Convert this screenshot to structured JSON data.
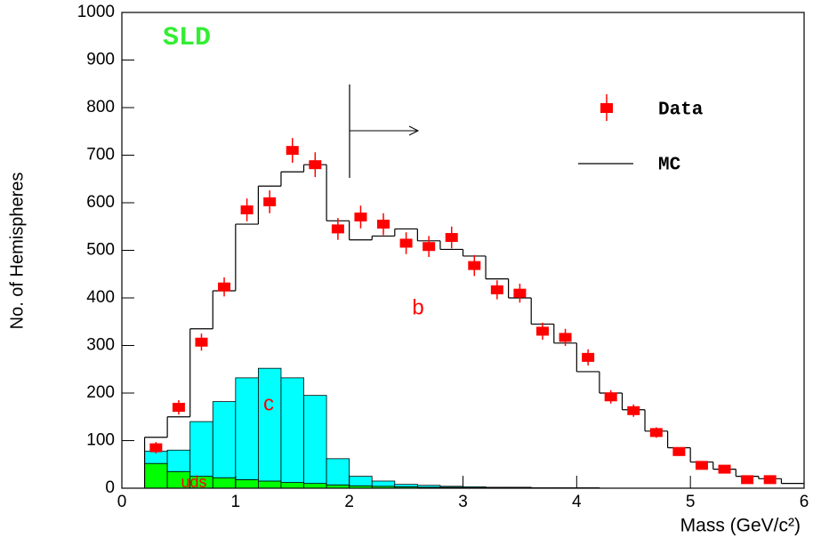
{
  "chart_data": {
    "type": "histogram",
    "label": "SLD",
    "xlabel": "Mass (GeV/c²)",
    "ylabel": "No. of Hemispheres",
    "region_label": "b",
    "xlim": [
      0,
      6
    ],
    "ylim": [
      0,
      1000
    ],
    "xticks": [
      0,
      1,
      2,
      3,
      4,
      5,
      6
    ],
    "yticks": [
      0,
      100,
      200,
      300,
      400,
      500,
      600,
      700,
      800,
      900,
      1000
    ],
    "bins": [
      0.2,
      0.4,
      0.6,
      0.8,
      1.0,
      1.2,
      1.4,
      1.6,
      1.8,
      2.0,
      2.2,
      2.4,
      2.6,
      2.8,
      3.0,
      3.2,
      3.4,
      3.6,
      3.8,
      4.0,
      4.2,
      4.4,
      4.6,
      4.8,
      5.0,
      5.2,
      5.4,
      5.6,
      5.8,
      6.0
    ],
    "series": [
      {
        "name": "uds",
        "color": "#00ff00",
        "stacked": true,
        "values": [
          52,
          35,
          25,
          22,
          18,
          15,
          12,
          10,
          7,
          5,
          4,
          3,
          2,
          2,
          1,
          1,
          1,
          1,
          0,
          0,
          0,
          0,
          0,
          0,
          0,
          0,
          0,
          0,
          0
        ]
      },
      {
        "name": "c",
        "color": "#00ffff",
        "stacked": true,
        "values": [
          26,
          45,
          115,
          160,
          214,
          237,
          220,
          185,
          55,
          20,
          11,
          5,
          4,
          2,
          2,
          1,
          1,
          0,
          1,
          1,
          0,
          0,
          0,
          0,
          0,
          0,
          0,
          0,
          0
        ]
      },
      {
        "name": "MC",
        "color": "#000000",
        "stacked": false,
        "values": [
          107,
          150,
          335,
          415,
          555,
          635,
          665,
          680,
          562,
          522,
          530,
          545,
          520,
          502,
          488,
          440,
          400,
          345,
          305,
          245,
          200,
          165,
          120,
          85,
          55,
          40,
          25,
          20,
          10
        ]
      }
    ],
    "points": {
      "name": "Data",
      "color": "#ff0000",
      "x": [
        0.3,
        0.5,
        0.7,
        0.9,
        1.1,
        1.3,
        1.5,
        1.7,
        1.9,
        2.1,
        2.3,
        2.5,
        2.7,
        2.9,
        3.1,
        3.3,
        3.5,
        3.7,
        3.9,
        4.1,
        4.3,
        4.5,
        4.7,
        4.9,
        5.1,
        5.3,
        5.5,
        5.7
      ],
      "values": [
        85,
        170,
        307,
        423,
        585,
        602,
        710,
        680,
        545,
        570,
        555,
        515,
        508,
        527,
        468,
        417,
        410,
        330,
        317,
        275,
        192,
        163,
        117,
        77,
        48,
        40,
        18,
        18
      ],
      "errors": [
        12,
        15,
        18,
        20,
        24,
        24,
        26,
        26,
        23,
        24,
        23,
        23,
        22,
        23,
        22,
        20,
        20,
        18,
        18,
        17,
        14,
        13,
        11,
        9,
        7,
        6,
        4,
        4
      ]
    }
  }
}
